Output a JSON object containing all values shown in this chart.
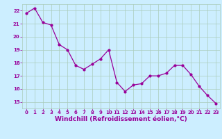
{
  "x": [
    0,
    1,
    2,
    3,
    4,
    5,
    6,
    7,
    8,
    9,
    10,
    11,
    12,
    13,
    14,
    15,
    16,
    17,
    18,
    19,
    20,
    21,
    22,
    23
  ],
  "y": [
    21.8,
    22.2,
    21.1,
    20.9,
    19.4,
    19.0,
    17.8,
    17.5,
    17.9,
    18.3,
    19.0,
    16.5,
    15.8,
    16.3,
    16.4,
    17.0,
    17.0,
    17.2,
    17.8,
    17.8,
    17.1,
    16.2,
    15.5,
    14.9
  ],
  "xlim": [
    -0.5,
    23.5
  ],
  "ylim": [
    14.5,
    22.5
  ],
  "yticks": [
    15,
    16,
    17,
    18,
    19,
    20,
    21,
    22
  ],
  "xticks": [
    0,
    1,
    2,
    3,
    4,
    5,
    6,
    7,
    8,
    9,
    10,
    11,
    12,
    13,
    14,
    15,
    16,
    17,
    18,
    19,
    20,
    21,
    22,
    23
  ],
  "xlabel": "Windchill (Refroidissement éolien,°C)",
  "line_color": "#990099",
  "marker_color": "#990099",
  "bg_color": "#cceeff",
  "grid_color": "#aaccbb",
  "tick_label_color": "#990099",
  "axis_label_color": "#990099",
  "tick_fontsize": 5.0,
  "xlabel_fontsize": 6.5
}
